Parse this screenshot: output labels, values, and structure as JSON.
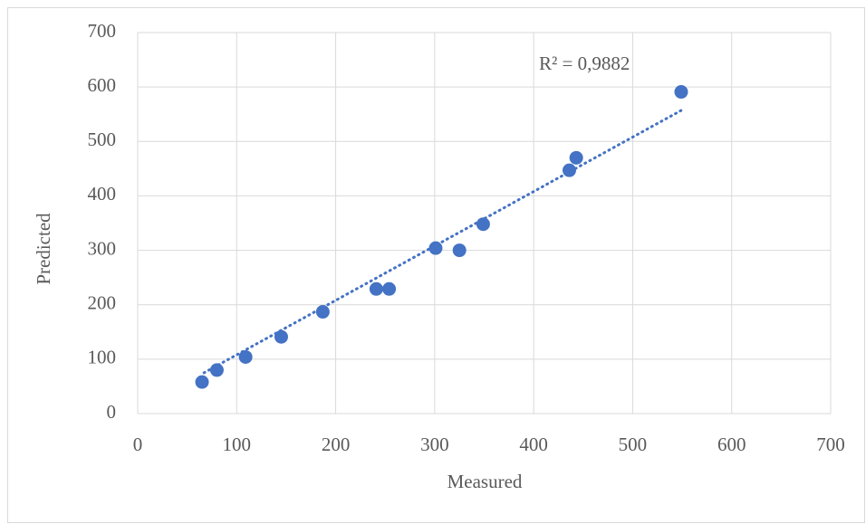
{
  "chart_data": {
    "type": "scatter",
    "x_label": "Measured",
    "y_label": "Predicted",
    "x": [
      65,
      80,
      109,
      145,
      187,
      241,
      254,
      301,
      325,
      349,
      436,
      443,
      549
    ],
    "series": [
      {
        "color": "#4472c4",
        "values": [
          58,
          80,
          104,
          141,
          187,
          229,
          229,
          304,
          300,
          348,
          447,
          470,
          591
        ]
      }
    ],
    "trendline": {
      "x": [
        67,
        549
      ],
      "y": [
        75,
        557
      ],
      "color": "#4472c4"
    },
    "annotation": "R² = 0,9882",
    "xlim": [
      0,
      700
    ],
    "ylim": [
      0,
      700
    ],
    "xticks": [
      0,
      100,
      200,
      300,
      400,
      500,
      600,
      700
    ],
    "yticks": [
      0,
      100,
      200,
      300,
      400,
      500,
      600,
      700
    ],
    "grid": true
  }
}
